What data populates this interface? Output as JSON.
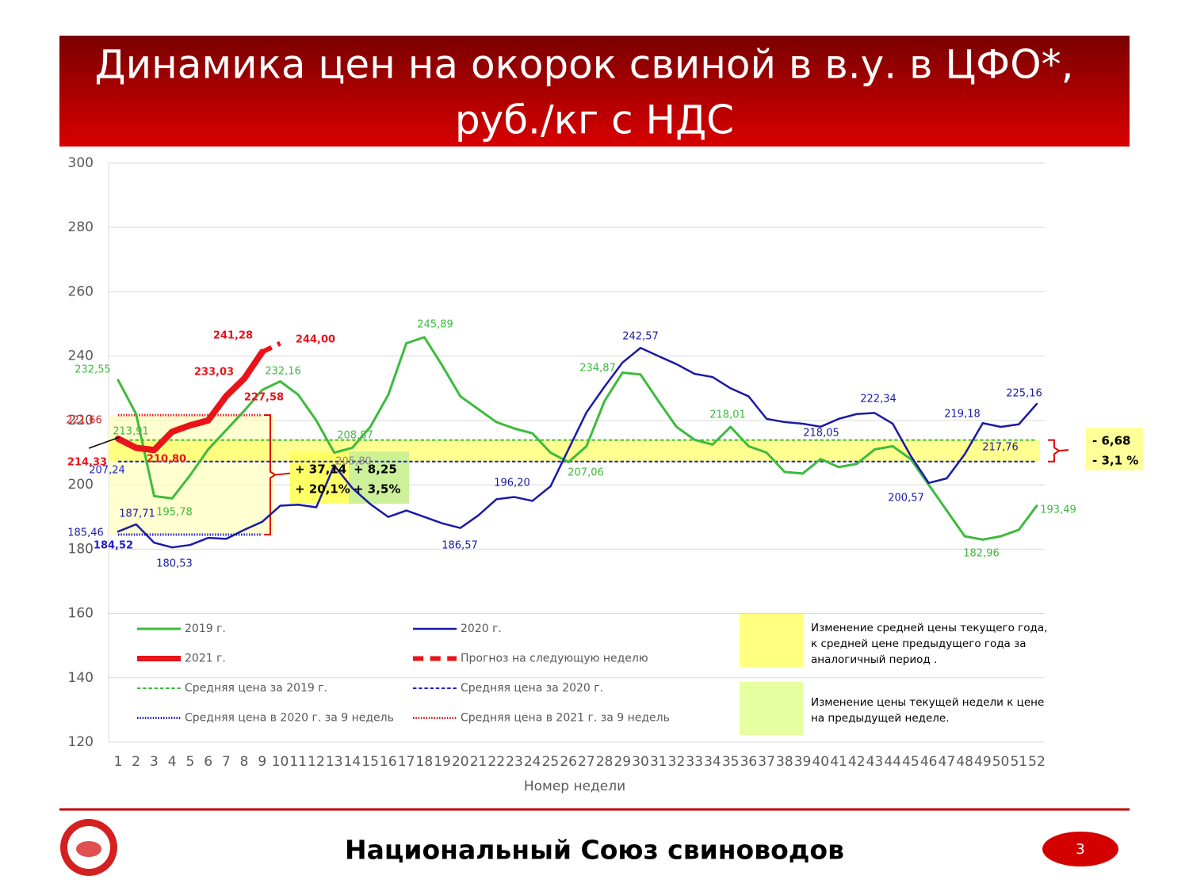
{
  "header": {
    "title_lines": [
      "Динамика цен на окорок свиной в в.у. в ЦФО*,",
      "руб./кг с НДС"
    ]
  },
  "chart_data": {
    "type": "line",
    "x_label": "Номер недели",
    "categories": [
      1,
      2,
      3,
      4,
      5,
      6,
      7,
      8,
      9,
      10,
      11,
      12,
      13,
      14,
      15,
      16,
      17,
      18,
      19,
      20,
      21,
      22,
      23,
      24,
      25,
      26,
      27,
      28,
      29,
      30,
      31,
      32,
      33,
      34,
      35,
      36,
      37,
      38,
      39,
      40,
      41,
      42,
      43,
      44,
      45,
      46,
      47,
      48,
      49,
      50,
      51,
      52
    ],
    "ylim": [
      120,
      300
    ],
    "yticks": [
      120,
      140,
      160,
      180,
      200,
      220,
      240,
      260,
      280,
      300
    ],
    "grid": true,
    "series": [
      {
        "name": "2019 г.",
        "color": "#3dbb3d",
        "style": "solid",
        "width": 3,
        "values": [
          232.55,
          222,
          196.5,
          195.78,
          203,
          211,
          217,
          223,
          229.5,
          232.16,
          228,
          220,
          210,
          211.5,
          218,
          228,
          244,
          245.89,
          237,
          227.5,
          223.5,
          219.5,
          217.5,
          216,
          210,
          207.06,
          212,
          226,
          234.87,
          234.3,
          226,
          218,
          214,
          212.5,
          218.01,
          212,
          210,
          204,
          203.5,
          208,
          205.5,
          206.5,
          211,
          212,
          208,
          200,
          192,
          184,
          182.96,
          184,
          186,
          193.49
        ],
        "value_labels": [
          "232,55",
          null,
          null,
          "195,78",
          null,
          null,
          null,
          null,
          null,
          "232,16",
          null,
          null,
          null,
          null,
          null,
          null,
          null,
          "245,89",
          null,
          null,
          null,
          null,
          null,
          null,
          null,
          "207,06",
          null,
          null,
          "234,87",
          null,
          null,
          null,
          null,
          null,
          "218,01",
          null,
          null,
          null,
          null,
          null,
          null,
          null,
          null,
          null,
          null,
          null,
          null,
          null,
          "182,96",
          null,
          null,
          "193,49"
        ]
      },
      {
        "name": "2020 г.",
        "color": "#1a1aa6",
        "style": "solid",
        "width": 2.5,
        "values": [
          185.46,
          187.71,
          182,
          180.53,
          181.3,
          183.5,
          183.2,
          186,
          188.5,
          193.5,
          193.8,
          193,
          206,
          199,
          194,
          190,
          192,
          190,
          188,
          186.57,
          190.5,
          195.5,
          196.2,
          195,
          199.5,
          211,
          222.5,
          230.5,
          238,
          242.57,
          240,
          237.5,
          234.5,
          233.5,
          230,
          227.5,
          220.5,
          219.5,
          219,
          218.05,
          220.5,
          222,
          222.34,
          219,
          209,
          200.57,
          202,
          209.5,
          219.18,
          218,
          218.8,
          225.16
        ],
        "value_labels": [
          "185,46",
          "187,71",
          null,
          "180,53",
          null,
          null,
          null,
          null,
          null,
          null,
          null,
          null,
          null,
          null,
          null,
          null,
          null,
          null,
          null,
          "186,57",
          null,
          null,
          "196,20",
          null,
          null,
          null,
          null,
          null,
          null,
          "242,57",
          null,
          null,
          null,
          null,
          null,
          null,
          null,
          null,
          null,
          "218,05",
          null,
          null,
          "222,34",
          null,
          null,
          "200,57",
          null,
          null,
          "219,18",
          null,
          null,
          "225,16"
        ]
      },
      {
        "name": "2021 г.",
        "color": "#e8141a",
        "style": "solid",
        "width": 8,
        "values": [
          214.33,
          211.5,
          210.8,
          216.5,
          218.5,
          220,
          227.58,
          233.03,
          241.28,
          null,
          null,
          null,
          null,
          null,
          null,
          null,
          null,
          null,
          null,
          null,
          null,
          null,
          null,
          null,
          null,
          null,
          null,
          null,
          null,
          null,
          null,
          null,
          null,
          null,
          null,
          null,
          null,
          null,
          null,
          null,
          null,
          null,
          null,
          null,
          null,
          null,
          null,
          null,
          null,
          null,
          null,
          null
        ],
        "value_labels": [
          "214,33",
          null,
          "210,80",
          null,
          null,
          null,
          "227,58",
          "233,03",
          "241,28",
          null,
          null,
          null,
          null,
          null,
          null,
          null,
          null,
          null,
          null,
          null,
          null,
          null,
          null,
          null,
          null,
          null,
          null,
          null,
          null,
          null,
          null,
          null,
          null,
          null,
          null,
          null,
          null,
          null,
          null,
          null,
          null,
          null,
          null,
          null,
          null,
          null,
          null,
          null,
          null,
          null,
          null,
          null
        ]
      },
      {
        "name": "Прогноз на следующую неделю",
        "color": "#e8141a",
        "style": "dashed",
        "width": 6,
        "values": [
          null,
          null,
          null,
          null,
          null,
          null,
          null,
          null,
          241.28,
          244,
          null,
          null,
          null,
          null,
          null,
          null,
          null,
          null,
          null,
          null,
          null,
          null,
          null,
          null,
          null,
          null,
          null,
          null,
          null,
          null,
          null,
          null,
          null,
          null,
          null,
          null,
          null,
          null,
          null,
          null,
          null,
          null,
          null,
          null,
          null,
          null,
          null,
          null,
          null,
          null,
          null,
          null
        ],
        "value_labels": [
          null,
          null,
          null,
          null,
          null,
          null,
          null,
          null,
          null,
          "244,00",
          null,
          null,
          null,
          null,
          null,
          null,
          null,
          null,
          null,
          null,
          null,
          null,
          null,
          null,
          null,
          null,
          null,
          null,
          null,
          null,
          null,
          null,
          null,
          null,
          null,
          null,
          null,
          null,
          null,
          null,
          null,
          null,
          null,
          null,
          null,
          null,
          null,
          null,
          null,
          null,
          null,
          null
        ]
      },
      {
        "name": "Средняя цена за 2019 г.",
        "color": "#3dbb3d",
        "style": "dashed",
        "width": 2,
        "values": [
          213.91,
          213.91,
          213.91,
          213.91,
          213.91,
          213.91,
          213.91,
          213.91,
          213.91,
          213.91,
          213.91,
          213.91,
          213.91,
          213.91,
          213.91,
          213.91,
          213.91,
          213.91,
          213.91,
          213.91,
          213.91,
          213.91,
          213.91,
          213.91,
          213.91,
          213.91,
          213.91,
          213.91,
          213.91,
          213.91,
          213.91,
          213.91,
          213.91,
          213.91,
          213.91,
          213.91,
          213.91,
          213.91,
          213.91,
          213.91,
          213.91,
          213.91,
          213.91,
          213.91,
          213.91,
          213.91,
          213.91,
          213.91,
          213.91,
          213.91,
          213.91,
          213.91
        ],
        "value_labels": [
          "213,91",
          null,
          null,
          null,
          null,
          null,
          null,
          null,
          null,
          null,
          null,
          null,
          null,
          null,
          null,
          null,
          null,
          null,
          null,
          null,
          null,
          null,
          null,
          null,
          null,
          null,
          null,
          null,
          null,
          null,
          null,
          null,
          null,
          null,
          null,
          null,
          null,
          null,
          null,
          null,
          null,
          null,
          null,
          null,
          null,
          null,
          null,
          null,
          null,
          null,
          null,
          null
        ]
      },
      {
        "name": "Средняя цена за 2020 г.",
        "color": "#1f1fd0",
        "style": "dashed",
        "width": 2,
        "values": [
          207.24,
          207.24,
          207.24,
          207.24,
          207.24,
          207.24,
          207.24,
          207.24,
          207.24,
          207.24,
          207.24,
          207.24,
          207.24,
          207.24,
          207.24,
          207.24,
          207.24,
          207.24,
          207.24,
          207.24,
          207.24,
          207.24,
          207.24,
          207.24,
          207.24,
          207.24,
          207.24,
          207.24,
          207.24,
          207.24,
          207.24,
          207.24,
          207.24,
          207.24,
          207.24,
          207.24,
          207.24,
          207.24,
          207.24,
          207.24,
          207.24,
          207.24,
          207.24,
          207.24,
          207.24,
          207.24,
          207.24,
          207.24,
          207.24,
          207.24,
          207.24,
          207.24
        ],
        "value_labels": [
          "207,24",
          null,
          null,
          null,
          null,
          null,
          null,
          null,
          null,
          null,
          null,
          null,
          null,
          null,
          null,
          null,
          null,
          null,
          null,
          null,
          null,
          null,
          null,
          null,
          null,
          null,
          null,
          null,
          null,
          null,
          null,
          null,
          null,
          null,
          null,
          null,
          null,
          null,
          null,
          null,
          null,
          null,
          null,
          null,
          null,
          null,
          null,
          null,
          null,
          null,
          null,
          null
        ]
      },
      {
        "name": "Средняя цена в 2020 г. за 9 недель",
        "color": "#1f1fd0",
        "style": "dotted",
        "width": 3,
        "values": [
          184.52,
          184.52,
          184.52,
          184.52,
          184.52,
          184.52,
          184.52,
          184.52,
          184.52,
          null,
          null,
          null,
          null,
          null,
          null,
          null,
          null,
          null,
          null,
          null,
          null,
          null,
          null,
          null,
          null,
          null,
          null,
          null,
          null,
          null,
          null,
          null,
          null,
          null,
          null,
          null,
          null,
          null,
          null,
          null,
          null,
          null,
          null,
          null,
          null,
          null,
          null,
          null,
          null,
          null,
          null,
          null
        ],
        "value_labels": [
          "184,52",
          null,
          null,
          null,
          null,
          null,
          null,
          null,
          null,
          null,
          null,
          null,
          null,
          null,
          null,
          null,
          null,
          null,
          null,
          null,
          null,
          null,
          null,
          null,
          null,
          null,
          null,
          null,
          null,
          null,
          null,
          null,
          null,
          null,
          null,
          null,
          null,
          null,
          null,
          null,
          null,
          null,
          null,
          null,
          null,
          null,
          null,
          null,
          null,
          null,
          null,
          null
        ]
      },
      {
        "name": "Средняя цена в 2021 г. за 9 недель",
        "color": "#d92020",
        "style": "dotted",
        "width": 3,
        "values": [
          221.66,
          221.66,
          221.66,
          221.66,
          221.66,
          221.66,
          221.66,
          221.66,
          221.66,
          null,
          null,
          null,
          null,
          null,
          null,
          null,
          null,
          null,
          null,
          null,
          null,
          null,
          null,
          null,
          null,
          null,
          null,
          null,
          null,
          null,
          null,
          null,
          null,
          null,
          null,
          null,
          null,
          null,
          null,
          null,
          null,
          null,
          null,
          null,
          null,
          null,
          null,
          null,
          null,
          null,
          null,
          null
        ],
        "value_labels": [
          "221,66",
          null,
          null,
          null,
          null,
          null,
          null,
          null,
          null,
          null,
          null,
          null,
          null,
          null,
          null,
          null,
          null,
          null,
          null,
          null,
          null,
          null,
          null,
          null,
          null,
          null,
          null,
          null,
          null,
          null,
          null,
          null,
          null,
          null,
          null,
          null,
          null,
          null,
          null,
          null,
          null,
          null,
          null,
          null,
          null,
          null,
          null,
          null,
          null,
          null,
          null,
          null
        ]
      }
    ],
    "annotations": [
      "+ 37,14",
      "+ 20,1%",
      "+ 8,25",
      "+ 3,5%",
      "- 6,68",
      "- 3,1 %",
      "208,87",
      "205,80",
      "217,76"
    ],
    "notes": [
      {
        "color": "#ffff80",
        "lines": [
          "Изменение средней цены текущего года,",
          "к средней цене предыдущего года за",
          "аналогичный период ."
        ]
      },
      {
        "color": "#e6ffa0",
        "lines": [
          "Изменение цены текущей недели к цене",
          "на предыдущей неделе."
        ]
      }
    ]
  },
  "footer": {
    "organization": "Национальный Союз свиноводов",
    "page": "3"
  }
}
